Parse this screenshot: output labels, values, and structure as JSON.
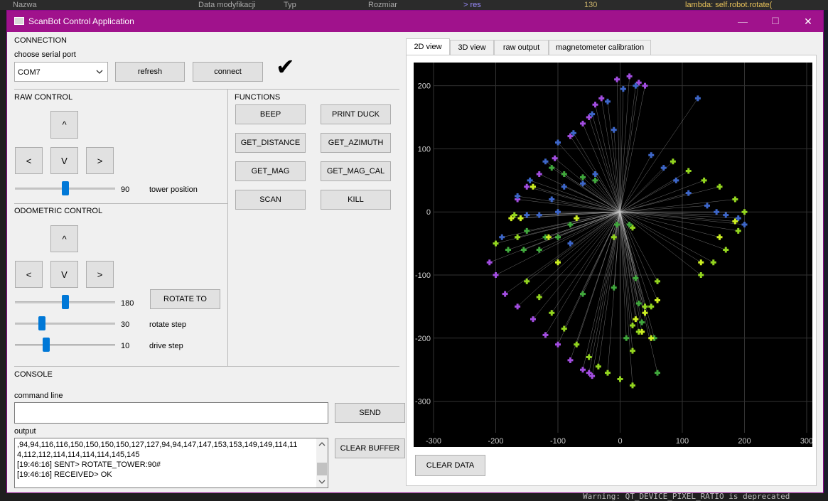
{
  "background": {
    "file_columns": [
      "Nazwa",
      "Data modyfikacji",
      "Typ",
      "Rozmiar"
    ],
    "code_snippet": "> res",
    "line_number": "130",
    "code_text": "lambda: self.robot.rotate(",
    "terminal_text": "Warning: QT_DEVICE_PIXEL_RATIO is deprecated"
  },
  "window": {
    "title": "ScanBot Control Application",
    "controls": {
      "minimize": "—",
      "maximize": "☐",
      "close": "✕"
    }
  },
  "connection": {
    "heading": "CONNECTION",
    "port_label": "choose serial port",
    "port_value": "COM7",
    "refresh_label": "refresh",
    "connect_label": "connect",
    "status_mark": "✔"
  },
  "raw_control": {
    "heading": "RAW CONTROL",
    "up": "^",
    "left": "<",
    "down": "V",
    "right": ">",
    "tower_value": "90",
    "tower_label": "tower position",
    "tower_fraction": 0.5
  },
  "functions": {
    "heading": "FUNCTIONS",
    "buttons": [
      "BEEP",
      "PRINT DUCK",
      "GET_DISTANCE",
      "GET_AZIMUTH",
      "GET_MAG",
      "GET_MAG_CAL",
      "SCAN",
      "KILL"
    ]
  },
  "odometric_control": {
    "heading": "ODOMETRIC CONTROL",
    "up": "^",
    "left": "<",
    "down": "V",
    "right": ">",
    "rotate_to_label": "ROTATE TO",
    "angle_value": "180",
    "angle_fraction": 0.5,
    "rotate_step_value": "30",
    "rotate_step_label": "rotate step",
    "rotate_step_fraction": 0.25,
    "drive_step_value": "10",
    "drive_step_label": "drive step",
    "drive_step_fraction": 0.3
  },
  "console": {
    "heading": "CONSOLE",
    "command_label": "command line",
    "command_value": "",
    "send_label": "SEND",
    "output_label": "output",
    "output_lines": [
      ",94,94,116,116,150,150,150,150,127,127,94,94,147,147,153,153,149,149,114,11",
      "4,112,112,114,114,114,114,145,145",
      "[19:46:16] SENT> ROTATE_TOWER:90#",
      "[19:46:16] RECEIVED> OK"
    ],
    "clear_buffer_label": "CLEAR BUFFER"
  },
  "tabs": [
    {
      "label": "2D view",
      "active": true
    },
    {
      "label": "3D view",
      "active": false
    },
    {
      "label": "raw output",
      "active": false
    },
    {
      "label": "magnetometer calibration",
      "active": false
    }
  ],
  "clear_data_label": "CLEAR DATA",
  "chart_data": {
    "type": "scatter",
    "xlim": [
      -300,
      300
    ],
    "ylim": [
      -300,
      200
    ],
    "x_ticks": [
      -300,
      -200,
      -100,
      0,
      100,
      200,
      300
    ],
    "y_ticks": [
      -300,
      -200,
      -100,
      0,
      100,
      200
    ],
    "grid": true,
    "colors": {
      "background": "#000000",
      "rays": "#c8c8c8",
      "grid": "#333333",
      "tick_text": "#cccccc"
    },
    "series": [
      {
        "color": "#a24de0",
        "points": [
          [
            -5,
            210
          ],
          [
            15,
            215
          ],
          [
            30,
            205
          ],
          [
            40,
            200
          ],
          [
            -30,
            180
          ],
          [
            -40,
            170
          ],
          [
            -50,
            150
          ],
          [
            -60,
            140
          ],
          [
            -80,
            120
          ],
          [
            -105,
            85
          ],
          [
            -130,
            60
          ],
          [
            -150,
            40
          ],
          [
            -165,
            20
          ],
          [
            -210,
            -80
          ],
          [
            -200,
            -100
          ],
          [
            -185,
            -130
          ],
          [
            -165,
            -150
          ],
          [
            -140,
            -170
          ],
          [
            -120,
            -195
          ],
          [
            -100,
            -210
          ],
          [
            -80,
            -235
          ],
          [
            -60,
            -250
          ],
          [
            -50,
            -255
          ],
          [
            -45,
            -260
          ]
        ]
      },
      {
        "color": "#3d66c8",
        "points": [
          [
            25,
            200
          ],
          [
            5,
            195
          ],
          [
            -20,
            175
          ],
          [
            -45,
            155
          ],
          [
            -75,
            125
          ],
          [
            -100,
            110
          ],
          [
            -120,
            80
          ],
          [
            -145,
            50
          ],
          [
            -165,
            25
          ],
          [
            50,
            90
          ],
          [
            70,
            70
          ],
          [
            90,
            50
          ],
          [
            110,
            30
          ],
          [
            140,
            10
          ],
          [
            155,
            0
          ],
          [
            170,
            -5
          ],
          [
            190,
            -10
          ],
          [
            200,
            -20
          ],
          [
            -10,
            130
          ],
          [
            -40,
            60
          ],
          [
            -60,
            45
          ],
          [
            -90,
            40
          ],
          [
            -110,
            20
          ],
          [
            125,
            180
          ],
          [
            -130,
            -5
          ],
          [
            -150,
            -5
          ],
          [
            -190,
            -40
          ],
          [
            -80,
            -50
          ],
          [
            -100,
            0
          ]
        ]
      },
      {
        "color": "#93d51f",
        "points": [
          [
            85,
            80
          ],
          [
            110,
            65
          ],
          [
            135,
            50
          ],
          [
            160,
            40
          ],
          [
            185,
            20
          ],
          [
            200,
            0
          ],
          [
            190,
            -30
          ],
          [
            170,
            -60
          ],
          [
            150,
            -80
          ],
          [
            130,
            -100
          ],
          [
            -165,
            -40
          ],
          [
            -170,
            -5
          ],
          [
            -200,
            -50
          ],
          [
            -150,
            -110
          ],
          [
            -130,
            -135
          ],
          [
            -110,
            -160
          ],
          [
            -90,
            -185
          ],
          [
            -70,
            -210
          ],
          [
            -50,
            -230
          ],
          [
            -35,
            -245
          ],
          [
            -20,
            -255
          ],
          [
            0,
            -265
          ],
          [
            20,
            -275
          ],
          [
            -10,
            -40
          ],
          [
            20,
            -25
          ],
          [
            30,
            -190
          ],
          [
            40,
            -150
          ],
          [
            50,
            -150
          ],
          [
            20,
            -180
          ],
          [
            20,
            -220
          ],
          [
            60,
            -110
          ]
        ]
      },
      {
        "color": "#40a83c",
        "points": [
          [
            -110,
            70
          ],
          [
            -90,
            60
          ],
          [
            -60,
            55
          ],
          [
            -40,
            50
          ],
          [
            -80,
            -20
          ],
          [
            -100,
            -40
          ],
          [
            -120,
            -40
          ],
          [
            -155,
            -60
          ],
          [
            15,
            -20
          ],
          [
            -5,
            -20
          ],
          [
            25,
            -105
          ],
          [
            30,
            -145
          ],
          [
            35,
            -175
          ],
          [
            55,
            -200
          ],
          [
            60,
            -255
          ],
          [
            10,
            -200
          ],
          [
            -10,
            -120
          ],
          [
            -60,
            -130
          ],
          [
            -130,
            -60
          ],
          [
            -150,
            -30
          ],
          [
            -180,
            -60
          ]
        ]
      },
      {
        "color": "#ccee22",
        "points": [
          [
            -160,
            -10
          ],
          [
            -175,
            -10
          ],
          [
            -140,
            40
          ],
          [
            -115,
            -40
          ],
          [
            -70,
            -10
          ],
          [
            -100,
            -80
          ],
          [
            130,
            -80
          ],
          [
            160,
            -40
          ],
          [
            185,
            -15
          ],
          [
            60,
            -140
          ],
          [
            40,
            -160
          ],
          [
            25,
            -170
          ],
          [
            35,
            -190
          ],
          [
            50,
            -200
          ]
        ]
      }
    ]
  }
}
